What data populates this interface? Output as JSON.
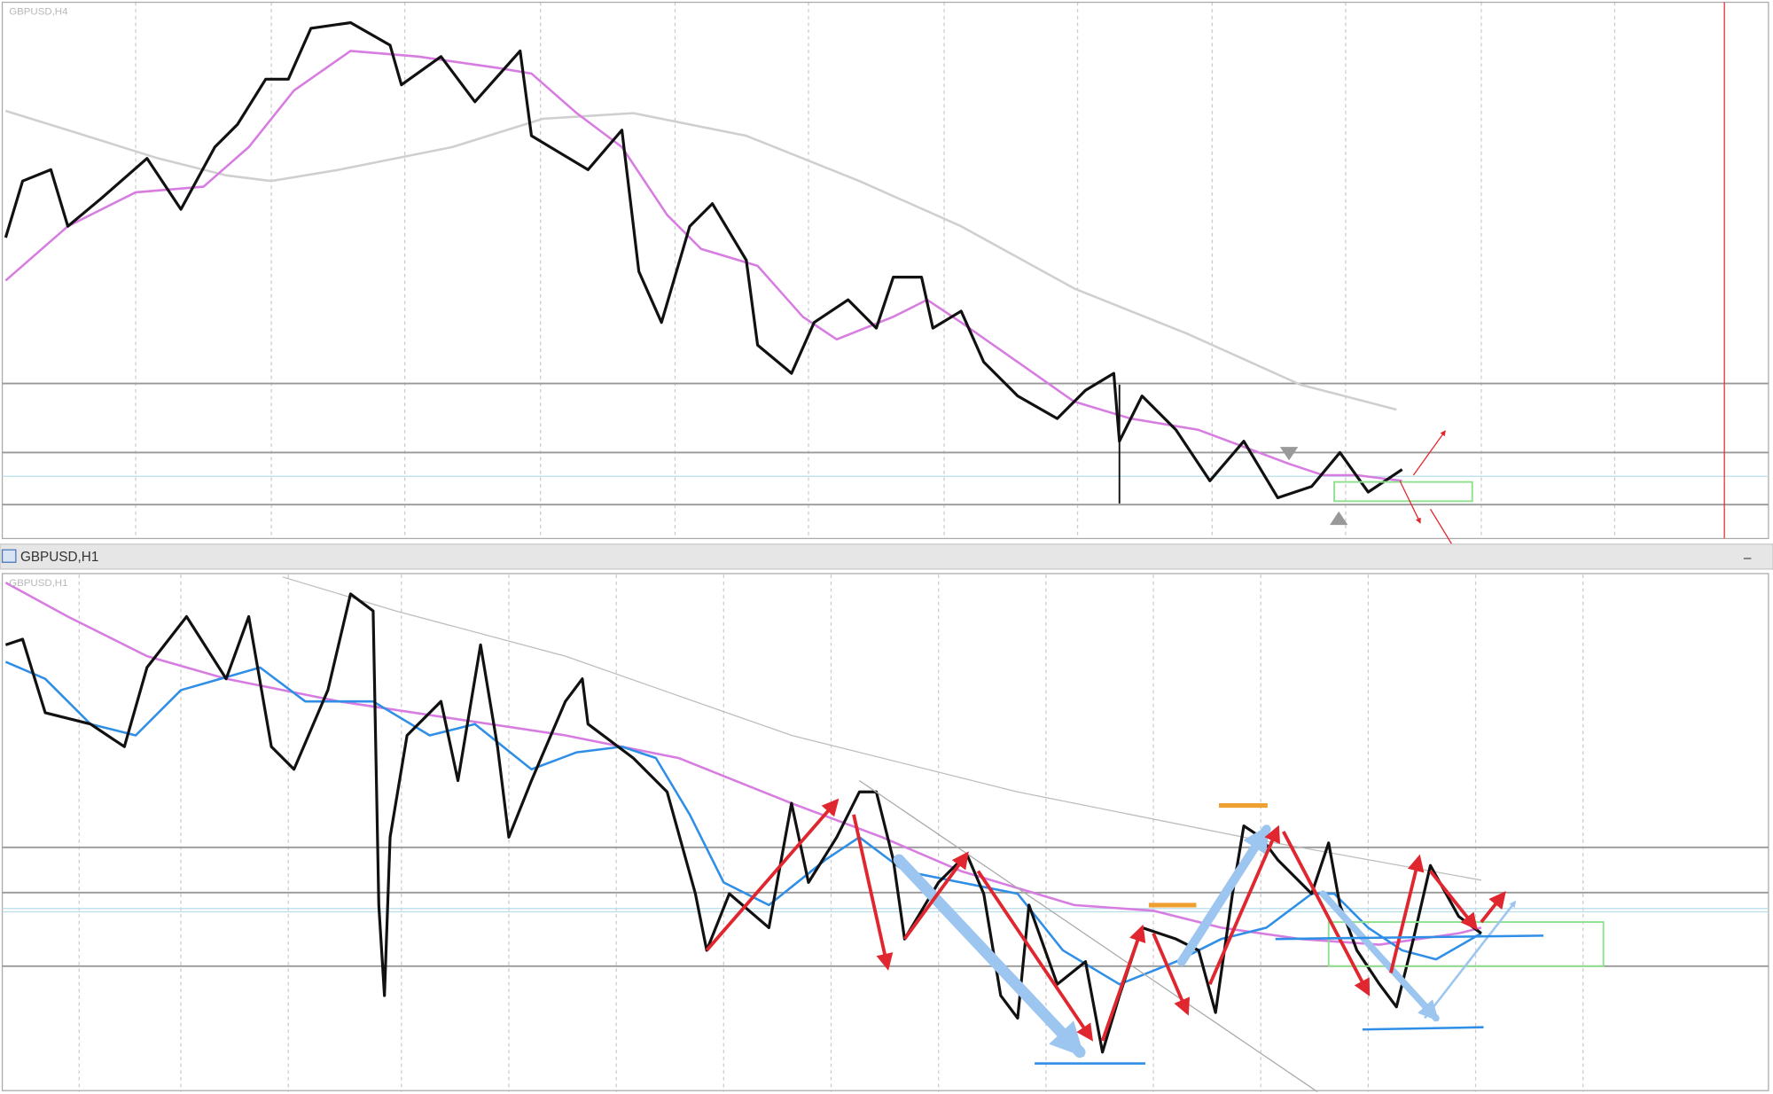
{
  "top_chart": {
    "label": "GBPUSD,H4"
  },
  "window": {
    "title": "GBPUSD,H1"
  },
  "bottom_chart": {
    "label": "GBPUSD,H1"
  }
}
